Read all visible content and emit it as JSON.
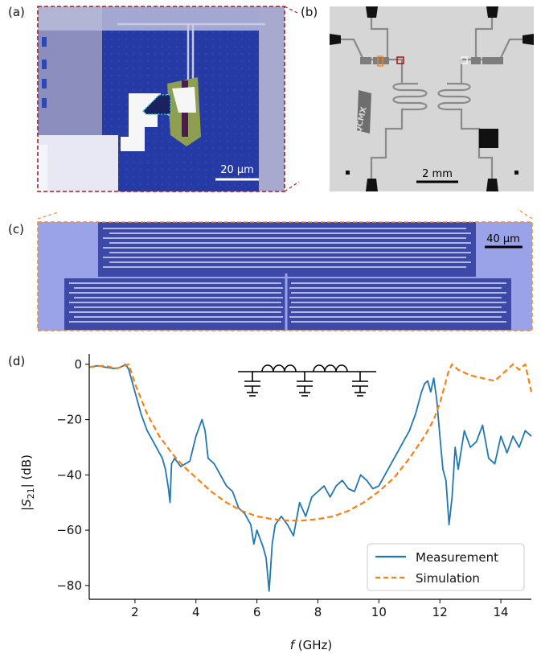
{
  "panel_labels": {
    "a": "(a)",
    "b": "(b)",
    "c": "(c)",
    "d": "(d)"
  },
  "panel_a": {
    "scalebar": "20 µm"
  },
  "panel_b": {
    "scalebar": "2 mm",
    "chip_text": "QCMX"
  },
  "panel_c": {
    "scalebar": "40 µm"
  },
  "chart_data": {
    "type": "line",
    "xlabel_italic": "f",
    "xlabel_unit": " (GHz)",
    "ylabel": "|S21| (dB)",
    "ylabel_parts": {
      "pre": "|",
      "main": "S",
      "sub": "21",
      "post": "|  (dB)"
    },
    "xlim": [
      0.5,
      15
    ],
    "ylim": [
      -85,
      2
    ],
    "xticks": [
      2,
      4,
      6,
      8,
      10,
      12,
      14
    ],
    "yticks": [
      0,
      -20,
      -40,
      -60,
      -80
    ],
    "ytick_labels": [
      "0",
      "−20",
      "−40",
      "−60",
      "−80"
    ],
    "legend_placement": "bottom-right",
    "series": [
      {
        "name": "Measurement",
        "color": "#1f77b4",
        "style": "solid",
        "x": [
          0.5,
          0.8,
          1.0,
          1.3,
          1.5,
          1.7,
          1.8,
          2.0,
          2.2,
          2.4,
          2.6,
          2.8,
          2.9,
          3.0,
          3.1,
          3.15,
          3.2,
          3.3,
          3.5,
          3.8,
          4.0,
          4.2,
          4.3,
          4.4,
          4.6,
          4.8,
          5.0,
          5.2,
          5.4,
          5.6,
          5.8,
          5.9,
          6.0,
          6.2,
          6.3,
          6.4,
          6.5,
          6.6,
          6.8,
          7.0,
          7.2,
          7.4,
          7.6,
          7.8,
          8.0,
          8.2,
          8.4,
          8.6,
          8.8,
          9.0,
          9.2,
          9.4,
          9.6,
          9.8,
          10.0,
          10.2,
          10.4,
          10.6,
          10.8,
          11.0,
          11.2,
          11.4,
          11.5,
          11.6,
          11.7,
          11.8,
          11.9,
          12.0,
          12.1,
          12.2,
          12.3,
          12.4,
          12.5,
          12.6,
          12.8,
          13.0,
          13.2,
          13.4,
          13.6,
          13.8,
          14.0,
          14.2,
          14.4,
          14.6,
          14.8,
          15.0
        ],
        "y": [
          -1,
          -0.5,
          -1,
          -1.5,
          -1.2,
          0,
          -2,
          -10,
          -18,
          -24,
          -28,
          -32,
          -34,
          -38,
          -45,
          -50,
          -36,
          -34,
          -37,
          -35,
          -26,
          -20,
          -24,
          -34,
          -36,
          -40,
          -44,
          -46,
          -52,
          -54,
          -58,
          -65,
          -60,
          -66,
          -70,
          -82,
          -65,
          -58,
          -55,
          -58,
          -62,
          -50,
          -55,
          -48,
          -46,
          -44,
          -48,
          -44,
          -42,
          -45,
          -46,
          -40,
          -42,
          -45,
          -44,
          -40,
          -36,
          -32,
          -28,
          -24,
          -18,
          -10,
          -7,
          -6,
          -10,
          -5,
          -13,
          -26,
          -38,
          -42,
          -58,
          -48,
          -30,
          -38,
          -24,
          -30,
          -28,
          -22,
          -34,
          -36,
          -26,
          -32,
          -26,
          -30,
          -24,
          -26
        ]
      },
      {
        "name": "Simulation",
        "color": "#ff7f0e",
        "style": "dashed",
        "x": [
          0.5,
          1.0,
          1.4,
          1.8,
          2.0,
          2.4,
          2.8,
          3.2,
          3.6,
          4.0,
          4.5,
          5.0,
          5.5,
          6.0,
          6.5,
          7.0,
          7.5,
          8.0,
          8.5,
          9.0,
          9.5,
          10.0,
          10.5,
          11.0,
          11.5,
          11.8,
          12.0,
          12.2,
          12.3,
          12.4,
          12.6,
          13.0,
          13.4,
          13.8,
          14.0,
          14.2,
          14.4,
          14.6,
          14.8,
          15.0
        ],
        "y": [
          -1,
          -0.5,
          -1.5,
          0,
          -7,
          -18,
          -26,
          -32,
          -37,
          -41,
          -46,
          -50,
          -53,
          -55,
          -56,
          -56.5,
          -56.5,
          -56,
          -55,
          -53,
          -50,
          -46,
          -41,
          -34,
          -26,
          -20,
          -14,
          -6,
          -2,
          0,
          -2,
          -4,
          -5,
          -6,
          -4,
          -2,
          0,
          -2,
          0,
          -10
        ]
      }
    ]
  }
}
